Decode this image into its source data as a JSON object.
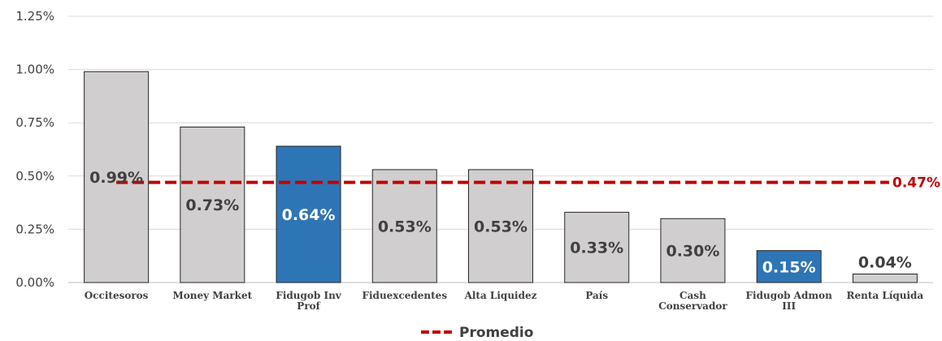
{
  "chart_data": {
    "type": "bar",
    "categories": [
      [
        "Occitesoros"
      ],
      [
        "Money Market"
      ],
      [
        "Fidugob Inv",
        "Prof"
      ],
      [
        "Fiduexcedentes"
      ],
      [
        "Alta Liquidez"
      ],
      [
        "País"
      ],
      [
        "Cash",
        "Conservador"
      ],
      [
        "Fidugob Admon",
        "III"
      ],
      [
        "Renta Líquida"
      ]
    ],
    "values": [
      0.99,
      0.73,
      0.64,
      0.53,
      0.53,
      0.33,
      0.3,
      0.15,
      0.04
    ],
    "data_labels": [
      "0.99%",
      "0.73%",
      "0.64%",
      "0.53%",
      "0.53%",
      "0.33%",
      "0.30%",
      "0.15%",
      "0.04%"
    ],
    "highlighted": [
      false,
      false,
      true,
      false,
      false,
      false,
      false,
      true,
      false
    ],
    "yticks": [
      0,
      0.25,
      0.5,
      0.75,
      1.0,
      1.25
    ],
    "ytick_labels": [
      "0.00%",
      "0.25%",
      "0.50%",
      "0.75%",
      "1.00%",
      "1.25%"
    ],
    "ylim": [
      0,
      1.25
    ],
    "average": {
      "name": "Promedio",
      "value": 0.47,
      "label": "0.47%"
    },
    "legend": {
      "position": "bottom",
      "entries": [
        "Promedio"
      ]
    },
    "grid": true,
    "colors": {
      "bar": "#d0cece",
      "bar_highlight": "#2e75b6",
      "bar_border": "#262626",
      "average_line": "#c00000",
      "label_dark": "#404040",
      "label_light": "#ffffff",
      "gridline": "#d9d9d9",
      "axis": "#bfbfbf"
    }
  }
}
